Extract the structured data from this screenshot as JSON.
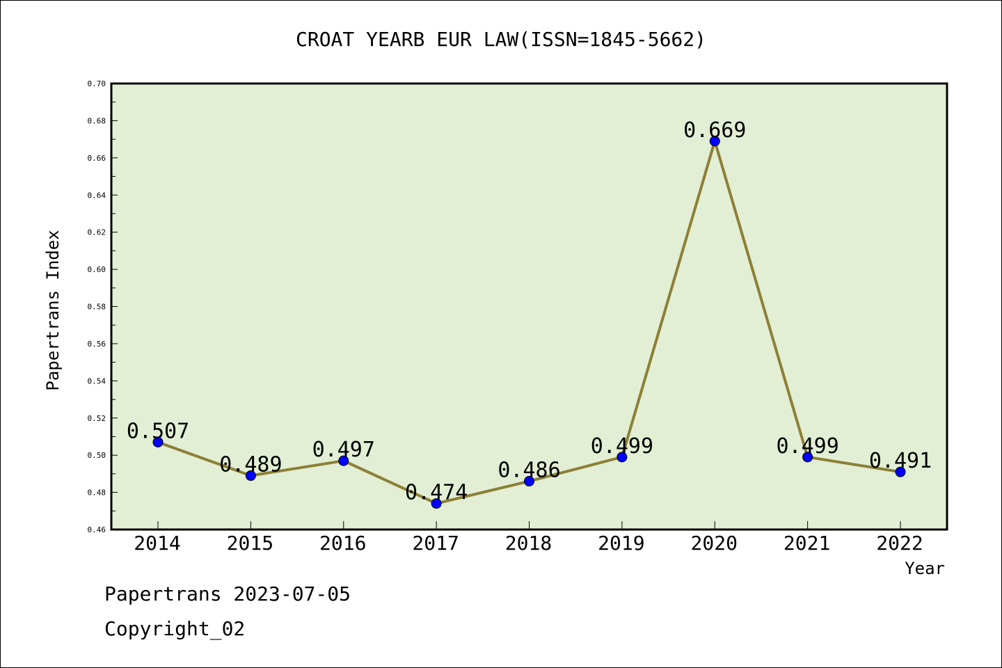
{
  "chart_data": {
    "type": "line",
    "title": "CROAT YEARB EUR LAW(ISSN=1845-5662)",
    "xlabel": "Year",
    "ylabel": "Papertrans Index",
    "categories": [
      "2014",
      "2015",
      "2016",
      "2017",
      "2018",
      "2019",
      "2020",
      "2021",
      "2022"
    ],
    "values": [
      0.507,
      0.489,
      0.497,
      0.474,
      0.486,
      0.499,
      0.669,
      0.499,
      0.491
    ],
    "data_labels": [
      "0.507",
      "0.489",
      "0.497",
      "0.474",
      "0.486",
      "0.499",
      "0.669",
      "0.499",
      "0.491"
    ],
    "ylim": [
      0.46,
      0.7
    ],
    "yticks": [
      "0.46",
      "0.48",
      "0.50",
      "0.52",
      "0.54",
      "0.56",
      "0.58",
      "0.60",
      "0.62",
      "0.64",
      "0.66",
      "0.68",
      "0.70"
    ],
    "grid": false,
    "legend": "none",
    "colors": {
      "plot_background": "#e2efd4",
      "line": "#8c7f36",
      "marker": "#0000ff"
    }
  },
  "footer": {
    "line1": "Papertrans 2023-07-05",
    "line2": "Copyright_02"
  }
}
